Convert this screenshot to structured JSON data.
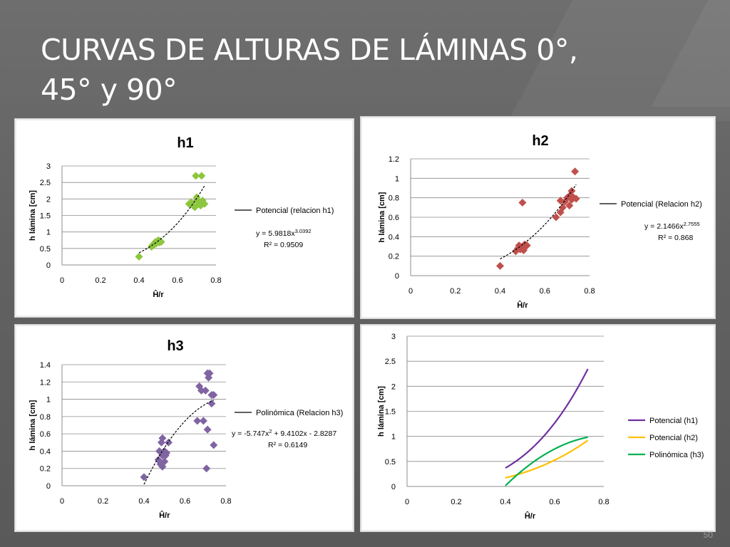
{
  "slide": {
    "title_line1": "CURVAS DE ALTURAS DE LÁMINAS 0°,",
    "title_line2": "45° y 90°",
    "page_number": "50"
  },
  "colors": {
    "h1": "#8dc63f",
    "h2": "#c0504d",
    "h3": "#8064a2",
    "pot_h1": "#7030a0",
    "pot_h2": "#ffc000",
    "pol_h3": "#00b050",
    "trend": "#000000"
  },
  "chart_data": [
    {
      "id": "h1",
      "type": "scatter",
      "title": "h1",
      "xlabel": "Ĥ/r",
      "ylabel": "h lámina  [cm]",
      "xlim": [
        0,
        0.8
      ],
      "ylim": [
        0,
        3
      ],
      "xticks": [
        "0",
        "0.2",
        "0.4",
        "0.6",
        "0.8"
      ],
      "yticks": [
        "0",
        "0.5",
        "1",
        "1.5",
        "2",
        "2.5",
        "3"
      ],
      "grid": true,
      "legend": "right",
      "marker_color": "#8dc63f",
      "points": [
        [
          0.4,
          0.25
        ],
        [
          0.465,
          0.55
        ],
        [
          0.47,
          0.6
        ],
        [
          0.48,
          0.62
        ],
        [
          0.485,
          0.7
        ],
        [
          0.49,
          0.65
        ],
        [
          0.5,
          0.75
        ],
        [
          0.505,
          0.68
        ],
        [
          0.51,
          0.72
        ],
        [
          0.515,
          0.7
        ],
        [
          0.66,
          1.85
        ],
        [
          0.67,
          1.9
        ],
        [
          0.68,
          1.8
        ],
        [
          0.69,
          1.75
        ],
        [
          0.7,
          1.95
        ],
        [
          0.7,
          2.05
        ],
        [
          0.71,
          1.85
        ],
        [
          0.72,
          1.9
        ],
        [
          0.72,
          1.8
        ],
        [
          0.73,
          1.95
        ],
        [
          0.74,
          1.85
        ],
        [
          0.695,
          2.7
        ],
        [
          0.725,
          2.7
        ]
      ],
      "trendline": {
        "kind": "power",
        "a": 5.9818,
        "b": 3.0392,
        "x_range": [
          0.4,
          0.74
        ]
      },
      "legend_label": "Potencial (relacion h1)",
      "equation": "y = 5.9818x3.0392",
      "r2": "R² = 0.9509"
    },
    {
      "id": "h2",
      "type": "scatter",
      "title": "h2",
      "xlabel": "Ĥ/r",
      "ylabel": "h lámina  [cm]",
      "xlim": [
        0,
        0.8
      ],
      "ylim": [
        0,
        1.2
      ],
      "xticks": [
        "0",
        "0.2",
        "0.4",
        "0.6",
        "0.8"
      ],
      "yticks": [
        "0",
        "0.2",
        "0.4",
        "0.6",
        "0.8",
        "1",
        "1.2"
      ],
      "grid": true,
      "legend": "right",
      "marker_color": "#c0504d",
      "points": [
        [
          0.4,
          0.1
        ],
        [
          0.47,
          0.25
        ],
        [
          0.48,
          0.28
        ],
        [
          0.485,
          0.31
        ],
        [
          0.49,
          0.27
        ],
        [
          0.5,
          0.3
        ],
        [
          0.505,
          0.26
        ],
        [
          0.51,
          0.32
        ],
        [
          0.515,
          0.3
        ],
        [
          0.52,
          0.31
        ],
        [
          0.5,
          0.75
        ],
        [
          0.65,
          0.6
        ],
        [
          0.67,
          0.65
        ],
        [
          0.67,
          0.77
        ],
        [
          0.68,
          0.7
        ],
        [
          0.69,
          0.76
        ],
        [
          0.7,
          0.8
        ],
        [
          0.71,
          0.72
        ],
        [
          0.715,
          0.83
        ],
        [
          0.72,
          0.87
        ],
        [
          0.72,
          0.78
        ],
        [
          0.73,
          0.8
        ],
        [
          0.74,
          0.79
        ],
        [
          0.735,
          1.07
        ]
      ],
      "trendline": {
        "kind": "power",
        "a": 2.1466,
        "b": 2.7555,
        "x_range": [
          0.4,
          0.74
        ]
      },
      "legend_label": "Potencial (Relacion h2)",
      "equation": "y = 2.1466x2.7555",
      "r2": "R² = 0.868"
    },
    {
      "id": "h3",
      "type": "scatter",
      "title": "h3",
      "xlabel": "Ĥ/r",
      "ylabel": "h lámina  [cm]",
      "xlim": [
        0,
        0.8
      ],
      "ylim": [
        0,
        1.4
      ],
      "xticks": [
        "0",
        "0.2",
        "0.4",
        "0.6",
        "0.8"
      ],
      "yticks": [
        "0",
        "0.2",
        "0.4",
        "0.6",
        "0.8",
        "1",
        "1.2",
        "1.4"
      ],
      "grid": true,
      "legend": "right",
      "marker_color": "#8064a2",
      "points": [
        [
          0.4,
          0.1
        ],
        [
          0.47,
          0.3
        ],
        [
          0.475,
          0.4
        ],
        [
          0.48,
          0.25
        ],
        [
          0.485,
          0.5
        ],
        [
          0.49,
          0.35
        ],
        [
          0.49,
          0.22
        ],
        [
          0.49,
          0.55
        ],
        [
          0.5,
          0.28
        ],
        [
          0.5,
          0.4
        ],
        [
          0.505,
          0.35
        ],
        [
          0.51,
          0.38
        ],
        [
          0.52,
          0.5
        ],
        [
          0.66,
          0.75
        ],
        [
          0.67,
          1.15
        ],
        [
          0.68,
          1.1
        ],
        [
          0.69,
          0.75
        ],
        [
          0.7,
          1.1
        ],
        [
          0.71,
          1.3
        ],
        [
          0.71,
          0.65
        ],
        [
          0.715,
          1.25
        ],
        [
          0.72,
          1.3
        ],
        [
          0.73,
          0.95
        ],
        [
          0.73,
          1.05
        ],
        [
          0.74,
          1.05
        ],
        [
          0.74,
          0.47
        ],
        [
          0.705,
          0.2
        ]
      ],
      "trendline": {
        "kind": "poly2",
        "c2": -5.747,
        "c1": 9.4102,
        "c0": -2.8287,
        "x_range": [
          0.4,
          0.74
        ]
      },
      "legend_label": "Polinómica (Relacion h3)",
      "equation": "y = -5.747x2 + 9.4102x - 2.8287",
      "r2": "R² = 0.6149"
    },
    {
      "id": "comparison",
      "type": "line",
      "title": "",
      "xlabel": "Ĥ/r",
      "ylabel": "h lámina [cm]",
      "xlim": [
        0,
        0.8
      ],
      "ylim": [
        0,
        3
      ],
      "xticks": [
        "0",
        "0.2",
        "0.4",
        "0.6",
        "0.8"
      ],
      "yticks": [
        "0",
        "0.5",
        "1",
        "1.5",
        "2",
        "2.5",
        "3"
      ],
      "grid": true,
      "legend": "right",
      "series": [
        {
          "name": "Potencial (h1)",
          "color": "#7030a0",
          "kind": "power",
          "a": 5.9818,
          "b": 3.0392,
          "x_range": [
            0.4,
            0.735
          ]
        },
        {
          "name": "Potencial (h2)",
          "color": "#ffc000",
          "kind": "power",
          "a": 2.1466,
          "b": 2.7555,
          "x_range": [
            0.4,
            0.735
          ]
        },
        {
          "name": "Polinómica (h3)",
          "color": "#00b050",
          "kind": "poly2",
          "c2": -5.747,
          "c1": 9.4102,
          "c0": -2.8287,
          "x_range": [
            0.4,
            0.735
          ]
        }
      ]
    }
  ]
}
